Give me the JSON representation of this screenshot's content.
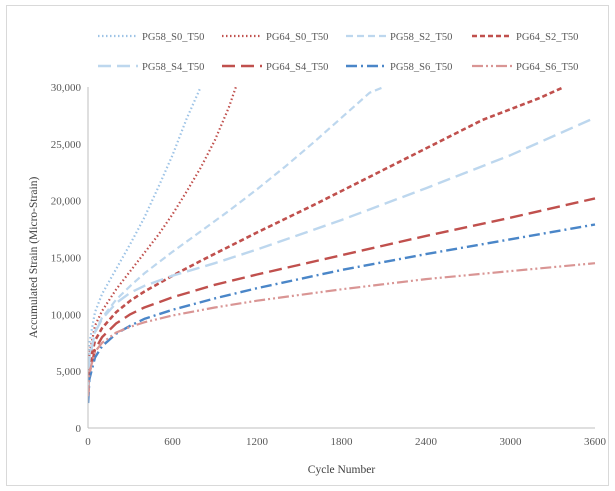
{
  "chart_data": {
    "type": "line",
    "title": "",
    "xlabel": "Cycle Number",
    "ylabel": "Accumulated Strain  (Micro-Strain)",
    "xlim": [
      0,
      3600
    ],
    "ylim": [
      0,
      30000
    ],
    "xticks": [
      0,
      600,
      1200,
      1800,
      2400,
      3000,
      3600
    ],
    "yticks": [
      0,
      5000,
      10000,
      15000,
      20000,
      25000,
      30000
    ],
    "xtick_labels": [
      "0",
      "600",
      "1200",
      "1800",
      "2400",
      "3000",
      "3600"
    ],
    "ytick_labels": [
      "0",
      "5,000",
      "10,000",
      "15,000",
      "20,000",
      "25,000",
      "30,000"
    ],
    "grid": "horizontal-none",
    "legend_position": "top",
    "series": [
      {
        "name": "PG58_S0_T50",
        "color": "#9dc3e6",
        "style": "dotted",
        "x": [
          1,
          10,
          50,
          100,
          200,
          300,
          400,
          500,
          600,
          700,
          800
        ],
        "y": [
          4000,
          7500,
          10200,
          11800,
          14000,
          16200,
          18500,
          21200,
          24000,
          27200,
          30000
        ]
      },
      {
        "name": "PG64_S0_T50",
        "color": "#c0504d",
        "style": "dotted",
        "x": [
          1,
          10,
          50,
          100,
          200,
          300,
          400,
          500,
          600,
          700,
          800,
          900,
          1000,
          1050
        ],
        "y": [
          3500,
          6500,
          9000,
          10300,
          12200,
          13800,
          15400,
          17000,
          18800,
          20800,
          22900,
          25300,
          28200,
          30000
        ]
      },
      {
        "name": "PG58_S2_T50",
        "color": "#bdd7ee",
        "style": "dashed",
        "x": [
          1,
          10,
          50,
          100,
          200,
          300,
          400,
          600,
          800,
          1000,
          1200,
          1400,
          1600,
          1800,
          2000,
          2100
        ],
        "y": [
          3500,
          6200,
          8500,
          9700,
          11300,
          12500,
          13600,
          15500,
          17300,
          19100,
          21000,
          23000,
          25100,
          27300,
          29500,
          30000
        ]
      },
      {
        "name": "PG64_S2_T50",
        "color": "#c0504d",
        "style": "short-dash",
        "x": [
          1,
          10,
          50,
          100,
          200,
          300,
          400,
          600,
          800,
          1200,
          1600,
          2000,
          2400,
          2800,
          3200,
          3380
        ],
        "y": [
          3000,
          5500,
          7700,
          8800,
          10200,
          11200,
          12000,
          13400,
          14700,
          17200,
          19600,
          22100,
          24600,
          27100,
          29000,
          30000
        ]
      },
      {
        "name": "PG58_S4_T50",
        "color": "#bdd7ee",
        "style": "long-dash",
        "x": [
          1,
          10,
          50,
          100,
          200,
          300,
          400,
          600,
          900,
          1200,
          1800,
          2400,
          3000,
          3600
        ],
        "y": [
          3500,
          6000,
          8400,
          9600,
          11000,
          11900,
          12500,
          13400,
          14500,
          15700,
          18300,
          21100,
          24000,
          27300
        ]
      },
      {
        "name": "PG64_S4_T50",
        "color": "#c0504d",
        "style": "long-dash",
        "x": [
          1,
          10,
          50,
          100,
          200,
          300,
          400,
          600,
          900,
          1200,
          1800,
          2400,
          3000,
          3600
        ],
        "y": [
          2500,
          4800,
          6900,
          8000,
          9200,
          10000,
          10600,
          11500,
          12600,
          13500,
          15200,
          16900,
          18500,
          20200
        ]
      },
      {
        "name": "PG58_S6_T50",
        "color": "#4a86c8",
        "style": "dash-dot",
        "x": [
          1,
          10,
          50,
          100,
          200,
          300,
          400,
          600,
          900,
          1200,
          1800,
          2400,
          3000,
          3600
        ],
        "y": [
          2200,
          4300,
          6200,
          7200,
          8300,
          9000,
          9600,
          10400,
          11400,
          12300,
          13900,
          15300,
          16600,
          17900
        ]
      },
      {
        "name": "PG64_S6_T50",
        "color": "#d99594",
        "style": "dash-dot-dot",
        "x": [
          1,
          10,
          50,
          100,
          200,
          300,
          400,
          600,
          900,
          1200,
          1800,
          2400,
          3000,
          3600
        ],
        "y": [
          2800,
          4900,
          6700,
          7500,
          8400,
          8900,
          9300,
          9900,
          10600,
          11200,
          12200,
          13100,
          13800,
          14500
        ]
      }
    ]
  }
}
